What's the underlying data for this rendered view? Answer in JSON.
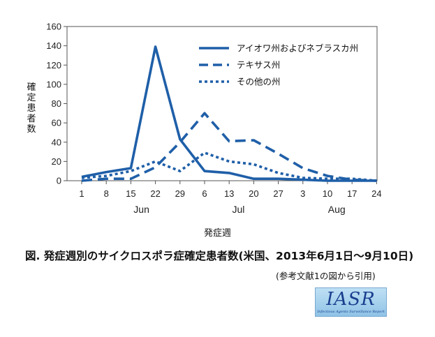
{
  "chart_data": {
    "type": "line",
    "title": "",
    "ylabel": "確定患者数",
    "xlabel": "発症週",
    "ylim": [
      0,
      160
    ],
    "yticks": [
      0,
      20,
      40,
      60,
      80,
      100,
      120,
      140,
      160
    ],
    "categories": [
      "1",
      "8",
      "15",
      "22",
      "29",
      "6",
      "13",
      "20",
      "27",
      "3",
      "10",
      "17",
      "24"
    ],
    "months": [
      {
        "label": "Jun",
        "center_category": "22"
      },
      {
        "label": "Jul",
        "center_category": "20"
      },
      {
        "label": "Aug",
        "center_category": "17"
      }
    ],
    "grid": false,
    "legend_position": "top-right",
    "series": [
      {
        "name": "アイオワ州およびネブラスカ州",
        "style": "solid",
        "color": "#1f5fa8",
        "values": [
          4,
          9,
          13,
          139,
          43,
          10,
          8,
          2,
          2,
          1,
          0,
          0,
          0
        ]
      },
      {
        "name": "テキサス州",
        "style": "dashed",
        "color": "#1f5fa8",
        "values": [
          0,
          2,
          2,
          14,
          40,
          70,
          41,
          42,
          28,
          13,
          5,
          1,
          0
        ]
      },
      {
        "name": "その他の州",
        "style": "dotted",
        "color": "#1f5fa8",
        "values": [
          3,
          5,
          10,
          20,
          10,
          29,
          20,
          17,
          8,
          3,
          2,
          2,
          0
        ]
      }
    ]
  },
  "caption": "図. 発症週別のサイクロスポラ症確定患者数(米国、2013年6月1日〜9月10日)",
  "source": "(参考文献1の図から引用)",
  "logo": {
    "main": "IASR",
    "sub": "Infectious Agents Surveillance Report"
  }
}
